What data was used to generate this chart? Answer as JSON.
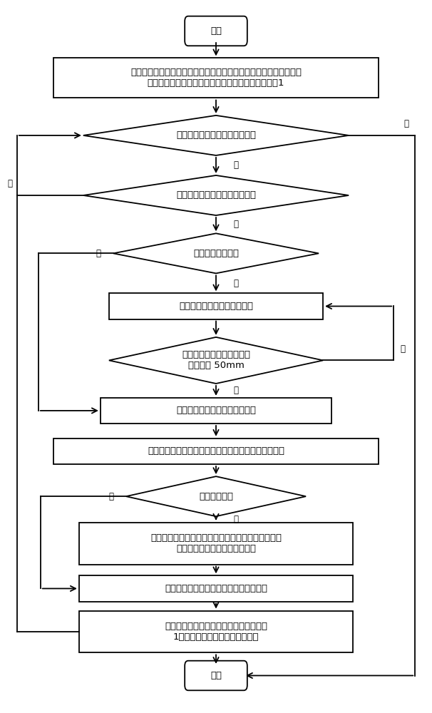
{
  "bg_color": "#ffffff",
  "line_color": "#000000",
  "font_size": 9.5,
  "nodes": {
    "start_text": "开始",
    "init_text": "建立并读取场景知识库、规则库和手势库，初始化综合数据库，开始\n检测标志和用户操作标记设为假，当前任务编号设为1",
    "d1_text": "当前任务编号大于任务最大编号",
    "d2_text": "当前物体操作状态与场景库相同",
    "d3_text": "开始检测标记为假",
    "rect_record_text": "记录手的初始位置及当前位置",
    "d4_text": "手的当前位置与初始位置的\n差值大于 50mm",
    "rect_sd_text": "开始检测标记变为真，开始检测",
    "rect_det_text": "根据场景规则库和当前任务编号，确定当前的操作物体",
    "d5_text": "操作标记为假",
    "rect_id_text": "识别用户动作，利用专家系统规则库推理出用户的意\n图。将相应的操作标记变为真。",
    "rect_exec_text": "执行相应操作，将开始检测标志改为假。",
    "rect_comp_text": "当前物体操作完成时，当前任务编号增加\n1，当前物体的操作状态改为假。",
    "end_text": "结束",
    "yes": "是",
    "no": "否"
  }
}
